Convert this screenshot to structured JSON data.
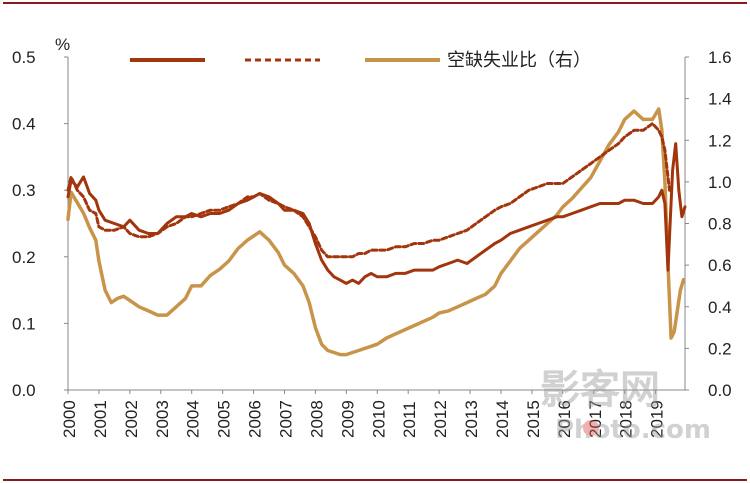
{
  "chart_data": {
    "type": "line",
    "title": "",
    "left_axis": {
      "unit_label": "%",
      "ylim": [
        0.0,
        0.5
      ],
      "ticks": [
        "0.0",
        "0.1",
        "0.2",
        "0.3",
        "0.4",
        "0.5"
      ]
    },
    "right_axis": {
      "ylim": [
        0.0,
        1.6
      ],
      "ticks": [
        "0.0",
        "0.2",
        "0.4",
        "0.6",
        "0.8",
        "1.0",
        "1.2",
        "1.4",
        "1.6"
      ]
    },
    "x_categories": [
      "2000",
      "2001",
      "2002",
      "2003",
      "2004",
      "2005",
      "2006",
      "2007",
      "2008",
      "2009",
      "2010",
      "2011",
      "2012",
      "2013",
      "2014",
      "2015",
      "2016",
      "2017",
      "2018",
      "2019"
    ],
    "xlim": [
      2000.0,
      2019.95
    ],
    "legend": [
      {
        "label": "",
        "style": "solid",
        "color": "#A3350C"
      },
      {
        "label": "",
        "style": "dashed",
        "color": "#A3350C"
      },
      {
        "label": "空缺失业比（右）",
        "style": "solid",
        "color": "#C8944A"
      }
    ],
    "series": [
      {
        "name": "solid",
        "axis": "left",
        "color": "#A3350C",
        "style": "solid",
        "x": [
          2000.0,
          2000.1,
          2000.3,
          2000.5,
          2000.7,
          2000.9,
          2001.0,
          2001.2,
          2001.5,
          2001.8,
          2002.0,
          2002.3,
          2002.6,
          2002.9,
          2003.2,
          2003.5,
          2003.8,
          2004.0,
          2004.3,
          2004.6,
          2004.9,
          2005.2,
          2005.5,
          2005.8,
          2006.0,
          2006.2,
          2006.5,
          2006.8,
          2007.0,
          2007.3,
          2007.6,
          2007.8,
          2008.0,
          2008.2,
          2008.4,
          2008.6,
          2008.8,
          2009.0,
          2009.2,
          2009.4,
          2009.6,
          2009.8,
          2010.0,
          2010.3,
          2010.6,
          2010.9,
          2011.2,
          2011.5,
          2011.8,
          2012.0,
          2012.3,
          2012.6,
          2012.9,
          2013.2,
          2013.5,
          2013.8,
          2014.0,
          2014.3,
          2014.6,
          2014.9,
          2015.2,
          2015.5,
          2015.8,
          2016.0,
          2016.3,
          2016.6,
          2016.9,
          2017.2,
          2017.5,
          2017.8,
          2018.0,
          2018.3,
          2018.6,
          2018.9,
          2019.1,
          2019.2,
          2019.3,
          2019.4,
          2019.45,
          2019.55,
          2019.65,
          2019.75,
          2019.85,
          2019.95
        ],
        "y": [
          0.29,
          0.315,
          0.305,
          0.32,
          0.295,
          0.285,
          0.27,
          0.255,
          0.25,
          0.245,
          0.255,
          0.24,
          0.235,
          0.235,
          0.25,
          0.26,
          0.26,
          0.265,
          0.26,
          0.265,
          0.265,
          0.27,
          0.28,
          0.285,
          0.29,
          0.295,
          0.29,
          0.28,
          0.27,
          0.27,
          0.265,
          0.25,
          0.22,
          0.195,
          0.18,
          0.17,
          0.165,
          0.16,
          0.165,
          0.16,
          0.17,
          0.175,
          0.17,
          0.17,
          0.175,
          0.175,
          0.18,
          0.18,
          0.18,
          0.185,
          0.19,
          0.195,
          0.19,
          0.2,
          0.21,
          0.22,
          0.225,
          0.235,
          0.24,
          0.245,
          0.25,
          0.255,
          0.26,
          0.26,
          0.265,
          0.27,
          0.275,
          0.28,
          0.28,
          0.28,
          0.285,
          0.285,
          0.28,
          0.28,
          0.29,
          0.3,
          0.28,
          0.18,
          0.23,
          0.33,
          0.37,
          0.3,
          0.26,
          0.275
        ]
      },
      {
        "name": "dashed",
        "axis": "left",
        "color": "#A3350C",
        "style": "dashed",
        "x": [
          2000.0,
          2000.1,
          2000.3,
          2000.5,
          2000.7,
          2000.9,
          2001.0,
          2001.2,
          2001.5,
          2001.8,
          2002.0,
          2002.3,
          2002.6,
          2002.9,
          2003.2,
          2003.5,
          2003.8,
          2004.0,
          2004.3,
          2004.6,
          2004.9,
          2005.2,
          2005.5,
          2005.8,
          2006.0,
          2006.2,
          2006.5,
          2006.8,
          2007.0,
          2007.3,
          2007.6,
          2007.8,
          2008.0,
          2008.2,
          2008.4,
          2008.6,
          2008.8,
          2009.0,
          2009.2,
          2009.4,
          2009.6,
          2009.8,
          2010.0,
          2010.3,
          2010.6,
          2010.9,
          2011.2,
          2011.5,
          2011.8,
          2012.0,
          2012.3,
          2012.6,
          2012.9,
          2013.2,
          2013.5,
          2013.8,
          2014.0,
          2014.3,
          2014.6,
          2014.9,
          2015.2,
          2015.5,
          2015.8,
          2016.0,
          2016.3,
          2016.6,
          2016.9,
          2017.2,
          2017.5,
          2017.8,
          2018.0,
          2018.3,
          2018.6,
          2018.9,
          2019.1,
          2019.2,
          2019.3,
          2019.45
        ],
        "y": [
          0.3,
          0.32,
          0.3,
          0.29,
          0.27,
          0.265,
          0.245,
          0.24,
          0.24,
          0.245,
          0.235,
          0.23,
          0.23,
          0.235,
          0.245,
          0.25,
          0.26,
          0.26,
          0.265,
          0.27,
          0.27,
          0.275,
          0.28,
          0.29,
          0.29,
          0.295,
          0.285,
          0.28,
          0.275,
          0.27,
          0.26,
          0.245,
          0.23,
          0.21,
          0.2,
          0.2,
          0.2,
          0.2,
          0.2,
          0.205,
          0.205,
          0.21,
          0.21,
          0.21,
          0.215,
          0.215,
          0.22,
          0.22,
          0.225,
          0.225,
          0.23,
          0.235,
          0.24,
          0.25,
          0.26,
          0.27,
          0.275,
          0.28,
          0.29,
          0.3,
          0.305,
          0.31,
          0.31,
          0.31,
          0.32,
          0.33,
          0.34,
          0.35,
          0.36,
          0.37,
          0.38,
          0.39,
          0.39,
          0.4,
          0.39,
          0.38,
          0.36,
          0.3
        ]
      },
      {
        "name": "空缺失业比（右）",
        "axis": "right",
        "color": "#C8944A",
        "style": "solid",
        "x": [
          2000.0,
          2000.1,
          2000.3,
          2000.5,
          2000.7,
          2000.9,
          2001.0,
          2001.2,
          2001.4,
          2001.6,
          2001.8,
          2002.0,
          2002.3,
          2002.6,
          2002.9,
          2003.2,
          2003.5,
          2003.8,
          2004.0,
          2004.3,
          2004.6,
          2004.9,
          2005.2,
          2005.5,
          2005.8,
          2006.0,
          2006.2,
          2006.5,
          2006.8,
          2007.0,
          2007.3,
          2007.6,
          2007.8,
          2008.0,
          2008.2,
          2008.4,
          2008.6,
          2008.8,
          2009.0,
          2009.2,
          2009.4,
          2009.6,
          2009.8,
          2010.0,
          2010.3,
          2010.6,
          2010.9,
          2011.2,
          2011.5,
          2011.8,
          2012.0,
          2012.3,
          2012.6,
          2012.9,
          2013.2,
          2013.5,
          2013.8,
          2014.0,
          2014.3,
          2014.6,
          2014.9,
          2015.2,
          2015.5,
          2015.8,
          2016.0,
          2016.3,
          2016.6,
          2016.9,
          2017.2,
          2017.5,
          2017.8,
          2018.0,
          2018.3,
          2018.6,
          2018.9,
          2019.1,
          2019.2,
          2019.3,
          2019.4,
          2019.5,
          2019.6,
          2019.7,
          2019.8,
          2019.9
        ],
        "y": [
          0.82,
          0.95,
          0.9,
          0.85,
          0.78,
          0.72,
          0.62,
          0.48,
          0.42,
          0.44,
          0.45,
          0.43,
          0.4,
          0.38,
          0.36,
          0.36,
          0.4,
          0.44,
          0.5,
          0.5,
          0.55,
          0.58,
          0.62,
          0.68,
          0.72,
          0.74,
          0.76,
          0.72,
          0.66,
          0.6,
          0.56,
          0.5,
          0.42,
          0.3,
          0.22,
          0.19,
          0.18,
          0.17,
          0.17,
          0.18,
          0.19,
          0.2,
          0.21,
          0.22,
          0.25,
          0.27,
          0.29,
          0.31,
          0.33,
          0.35,
          0.37,
          0.38,
          0.4,
          0.42,
          0.44,
          0.46,
          0.5,
          0.56,
          0.62,
          0.68,
          0.72,
          0.76,
          0.8,
          0.84,
          0.88,
          0.92,
          0.97,
          1.02,
          1.1,
          1.18,
          1.24,
          1.3,
          1.34,
          1.3,
          1.3,
          1.35,
          1.25,
          1.0,
          0.6,
          0.25,
          0.28,
          0.38,
          0.48,
          0.53
        ]
      }
    ]
  },
  "watermark": {
    "main": "影客网",
    "sub": "Photo.com"
  }
}
